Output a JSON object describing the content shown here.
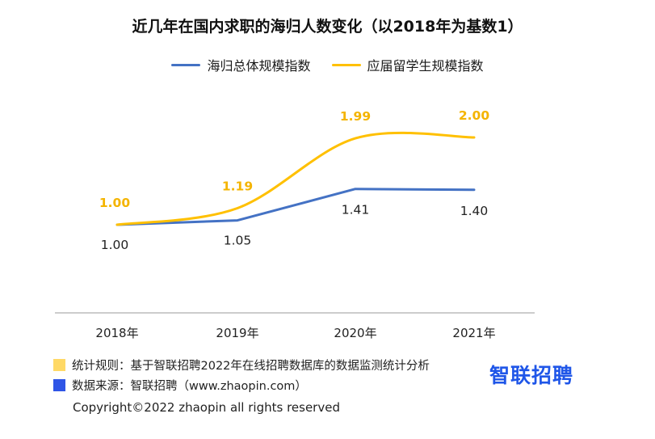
{
  "chart_data": {
    "type": "line",
    "title": "近几年在国内求职的海归人数变化（以2018年为基数1）",
    "categories": [
      "2018年",
      "2019年",
      "2020年",
      "2021年"
    ],
    "series": [
      {
        "name": "海归总体规模指数",
        "values": [
          1.0,
          1.05,
          1.41,
          1.4
        ],
        "color": "#4472c4",
        "label_color": "#222222",
        "label_position": "below"
      },
      {
        "name": "应届留学生规模指数",
        "values": [
          1.0,
          1.19,
          1.99,
          2.0
        ],
        "color": "#ffc000",
        "label_color": "#f4b400",
        "label_position": "above"
      }
    ],
    "legend_position": "top",
    "grid": false
  },
  "footer": {
    "rule_label": "统计规则：基于智联招聘2022年在线招聘数据库的数据监测统计分析",
    "source_label": "数据来源：智联招聘（www.zhaopin.com）",
    "rule_color": "#ffd966",
    "source_color": "#2f55e6",
    "copyright": "Copyright©2022 zhaopin all rights reserved",
    "brand": "智联招聘"
  }
}
